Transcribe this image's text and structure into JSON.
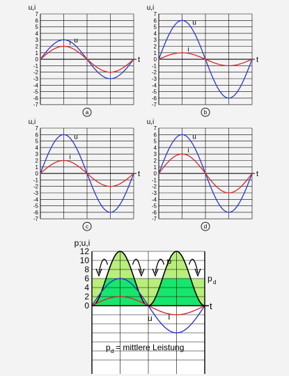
{
  "colors": {
    "background": "#f3f3f3",
    "grid": "#000000",
    "voltage": "#2a36c8",
    "current": "#d8262a",
    "power_fill_light": "#b9ee7c",
    "power_fill_dark": "#17e66c"
  },
  "panels": [
    {
      "id": "a",
      "axis_label": "u,i",
      "time_label": "t",
      "caption": "a",
      "u_label": "u",
      "i_label": "i",
      "y_ticks": [
        "7",
        "6",
        "5",
        "4",
        "3",
        "2",
        "1",
        "0",
        "-1",
        "-2",
        "-3",
        "-4",
        "-5",
        "-6",
        "-7"
      ],
      "u_amplitude": 3,
      "i_amplitude": 2
    },
    {
      "id": "b",
      "axis_label": "u,i",
      "time_label": "t",
      "caption": "b",
      "u_label": "u",
      "i_label": "i",
      "y_ticks": [
        "7",
        "6",
        "5",
        "4",
        "3",
        "2",
        "1",
        "0",
        "-1",
        "-2",
        "-3",
        "-4",
        "-5",
        "-6",
        "-7"
      ],
      "u_amplitude": 6,
      "i_amplitude": 1
    },
    {
      "id": "c",
      "axis_label": "u,i",
      "time_label": "t",
      "caption": "c",
      "u_label": "u",
      "i_label": "i",
      "y_ticks": [
        "7",
        "6",
        "5",
        "4",
        "3",
        "2",
        "1",
        "0",
        "-1",
        "-2",
        "-3",
        "-4",
        "-5",
        "-6",
        "-7"
      ],
      "u_amplitude": 6,
      "i_amplitude": 2
    },
    {
      "id": "d",
      "axis_label": "u,i",
      "time_label": "t",
      "caption": "d",
      "u_label": "u",
      "i_label": "i",
      "y_ticks": [
        "7",
        "6",
        "5",
        "4",
        "3",
        "2",
        "1",
        "0",
        "-1",
        "-2",
        "-3",
        "-4",
        "-5",
        "-6",
        "-7"
      ],
      "u_amplitude": 6,
      "i_amplitude": 3
    }
  ],
  "power_chart": {
    "axis_label": "p;u,i",
    "time_label": "t",
    "p_label": "p",
    "pd_label": "p",
    "pd_subscript": "d",
    "u_label": "u",
    "i_label": "i",
    "y_ticks": [
      "12",
      "10",
      "8",
      "6",
      "4",
      "2",
      "0"
    ],
    "u_amplitude": 6,
    "i_amplitude": 2,
    "p_peak": 12,
    "p_mean": 6,
    "caption_symbol": "p",
    "caption_subscript": "d",
    "caption_text": "= mittlere Leistung"
  }
}
